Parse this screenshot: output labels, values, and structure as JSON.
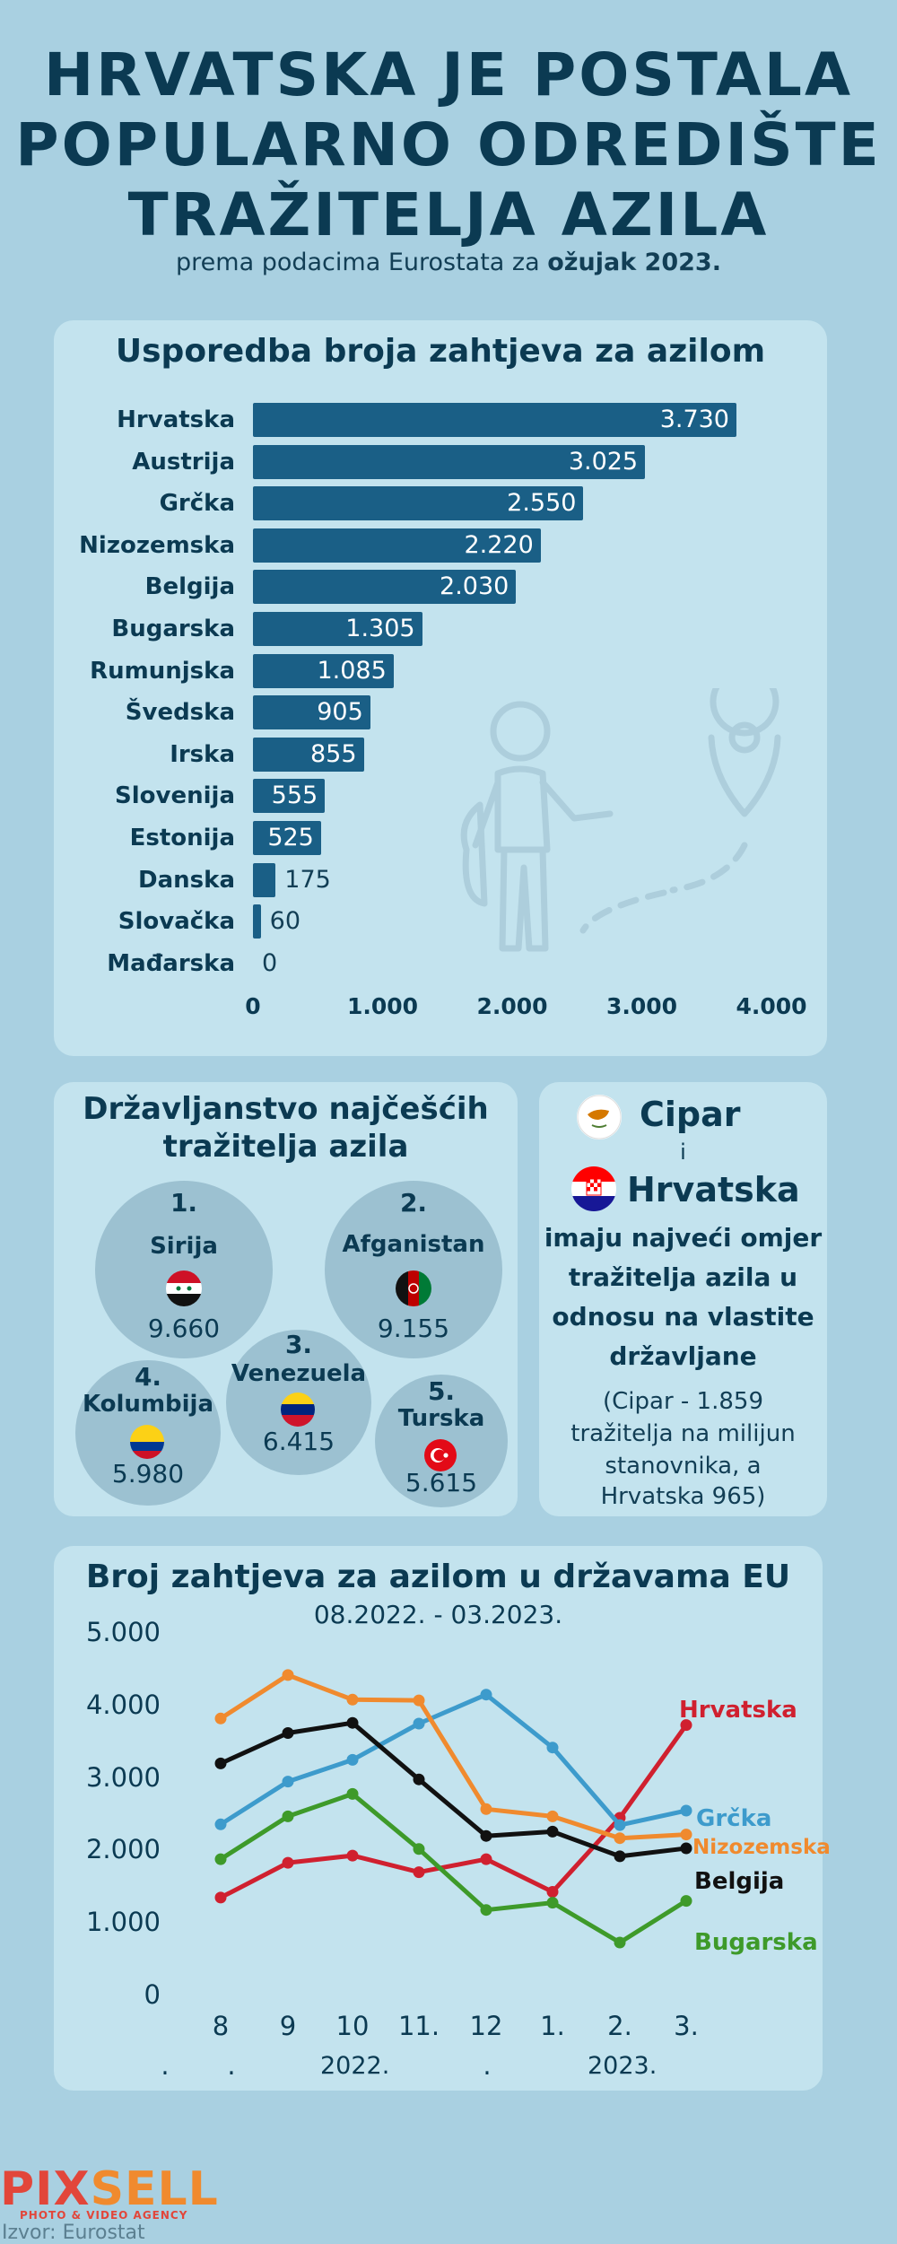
{
  "header": {
    "title_lines": [
      "HRVATSKA JE POSTALA",
      "POPULARNO ODREDIŠTE",
      "TRAŽITELJA AZILA"
    ],
    "subtitle_prefix": "prema podacima Eurostata za ",
    "subtitle_bold": "ožujak 2023."
  },
  "bar_panel": {
    "title": "Usporedba broja zahtjeva za azilom"
  },
  "nationality_panel": {
    "title_line1": "Državljanstvo najčešćih",
    "title_line2": "tražitelja azila",
    "items": [
      {
        "rank": "1.",
        "name": "Sirija",
        "value": "9.660",
        "flag": "syria-flag"
      },
      {
        "rank": "2.",
        "name": "Afganistan",
        "value": "9.155",
        "flag": "afghanistan-flag"
      },
      {
        "rank": "3.",
        "name": "Venezuela",
        "value": "6.415",
        "flag": "venezuela-flag"
      },
      {
        "rank": "4.",
        "name": "Kolumbija",
        "value": "5.980",
        "flag": "colombia-flag"
      },
      {
        "rank": "5.",
        "name": "Turska",
        "value": "5.615",
        "flag": "turkey-flag"
      }
    ]
  },
  "cipar_panel": {
    "country1": "Cipar",
    "conj": "i",
    "country2": "Hrvatska",
    "text_lines": [
      "imaju najveći omjer",
      "tražitelja azila u",
      "odnosu na vlastite",
      "državljane"
    ],
    "note_lines": [
      "(Cipar - 1.859",
      "tražitelja na milijun",
      "stanovnika, a",
      "Hrvatska 965)"
    ]
  },
  "line_panel": {
    "title": "Broj zahtjeva za azilom  u državama EU",
    "subtitle": "08.2022. - 03.2023.",
    "year_labels": [
      "2022.",
      "2023."
    ],
    "month_dots": [
      ".",
      ".",
      "."
    ]
  },
  "footer": {
    "logo_part1": "PIX",
    "logo_part2": "SELL",
    "logo_sub": "PHOTO & VIDEO AGENCY",
    "source": "Izvor: Eurostat"
  },
  "colors": {
    "background": "#a9d0e1",
    "panel": "#c3e3ee",
    "bar": "#1a5f86",
    "title": "#0b3a52"
  },
  "chart_data": [
    {
      "type": "bar",
      "orientation": "horizontal",
      "title": "Usporedba broja zahtjeva za azilom",
      "categories": [
        "Hrvatska",
        "Austrija",
        "Grčka",
        "Nizozemska",
        "Belgija",
        "Bugarska",
        "Rumunjska",
        "Švedska",
        "Irska",
        "Slovenija",
        "Estonija",
        "Danska",
        "Slovačka",
        "Mađarska"
      ],
      "values": [
        3730,
        3025,
        2550,
        2220,
        2030,
        1305,
        1085,
        905,
        855,
        555,
        525,
        175,
        60,
        0
      ],
      "value_labels": [
        "3.730",
        "3.025",
        "2.550",
        "2.220",
        "2.030",
        "1.305",
        "1.085",
        "905",
        "855",
        "555",
        "525",
        "175",
        "60",
        "0"
      ],
      "xlim": [
        0,
        4000
      ],
      "xticks": [
        0,
        1000,
        2000,
        3000,
        4000
      ],
      "xtick_labels": [
        "0",
        "1.000",
        "2.000",
        "3.000",
        "4.000"
      ]
    },
    {
      "type": "line",
      "title": "Broj zahtjeva za azilom  u državama EU",
      "x": [
        "8",
        "9",
        "10",
        "11.",
        "12",
        "1.",
        "2.",
        "3."
      ],
      "ylim": [
        0,
        5000
      ],
      "yticks": [
        0,
        1000,
        2000,
        3000,
        4000,
        5000
      ],
      "ytick_labels": [
        "0",
        "1.000",
        "2.000",
        "3.000",
        "4.000",
        "5.000"
      ],
      "grid": false,
      "series": [
        {
          "name": "Hrvatska",
          "color": "#d0202f",
          "values": [
            1350,
            1830,
            1930,
            1700,
            1880,
            1430,
            2450,
            3730
          ]
        },
        {
          "name": "Grčka",
          "color": "#3d9bcc",
          "values": [
            2360,
            2950,
            3250,
            3750,
            4150,
            3420,
            2350,
            2550
          ]
        },
        {
          "name": "Nizozemska",
          "color": "#f08a2e",
          "values": [
            3820,
            4420,
            4080,
            4070,
            2570,
            2470,
            2170,
            2220
          ]
        },
        {
          "name": "Belgija",
          "color": "#111111",
          "values": [
            3200,
            3620,
            3760,
            2980,
            2200,
            2260,
            1920,
            2030
          ]
        },
        {
          "name": "Bugarska",
          "color": "#3e9a2a",
          "values": [
            1880,
            2470,
            2780,
            2020,
            1180,
            1280,
            730,
            1305
          ]
        }
      ]
    }
  ]
}
